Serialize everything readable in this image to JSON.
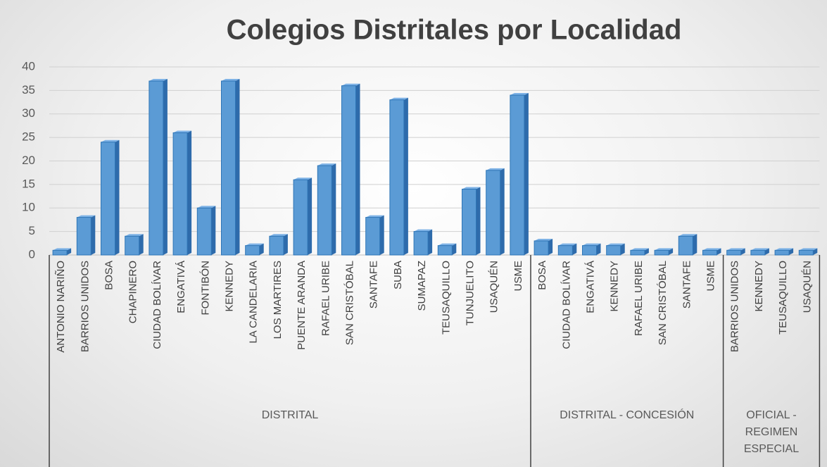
{
  "chart_data": {
    "type": "bar",
    "title": "Colegios Distritales por Localidad",
    "color": "#5b9bd5",
    "grid": true,
    "ylim": [
      0,
      40
    ],
    "yticks": [
      0,
      5,
      10,
      15,
      20,
      25,
      30,
      35,
      40
    ],
    "groups": [
      {
        "name": "DISTRITAL",
        "categories": [
          "ANTONIO NARIÑO",
          "BARRIOS UNIDOS",
          "BOSA",
          "CHAPINERO",
          "CIUDAD BOLÍVAR",
          "ENGATIVÁ",
          "FONTIBÓN",
          "KENNEDY",
          "LA CANDELARIA",
          "LOS MARTIRES",
          "PUENTE ARANDA",
          "RAFAEL URIBE",
          "SAN CRISTÓBAL",
          "SANTAFE",
          "SUBA",
          "SUMAPAZ",
          "TEUSAQUILLO",
          "TUNJUELITO",
          "USAQUÉN",
          "USME"
        ],
        "values": [
          1,
          8,
          24,
          4,
          37,
          26,
          10,
          37,
          2,
          4,
          16,
          19,
          36,
          8,
          33,
          5,
          2,
          14,
          18,
          34
        ]
      },
      {
        "name": "DISTRITAL - CONCESIÓN",
        "categories": [
          "BOSA",
          "CIUDAD BOLÍVAR",
          "ENGATIVÁ",
          "KENNEDY",
          "RAFAEL URIBE",
          "SAN CRISTÓBAL",
          "SANTAFE",
          "USME"
        ],
        "values": [
          3,
          2,
          2,
          2,
          1,
          1,
          4,
          1
        ]
      },
      {
        "name": "OFICIAL - REGIMEN ESPECIAL",
        "categories": [
          "BARRIOS UNIDOS",
          "KENNEDY",
          "TEUSAQUILLO",
          "USAQUÉN"
        ],
        "values": [
          1,
          1,
          1,
          1
        ]
      }
    ]
  }
}
